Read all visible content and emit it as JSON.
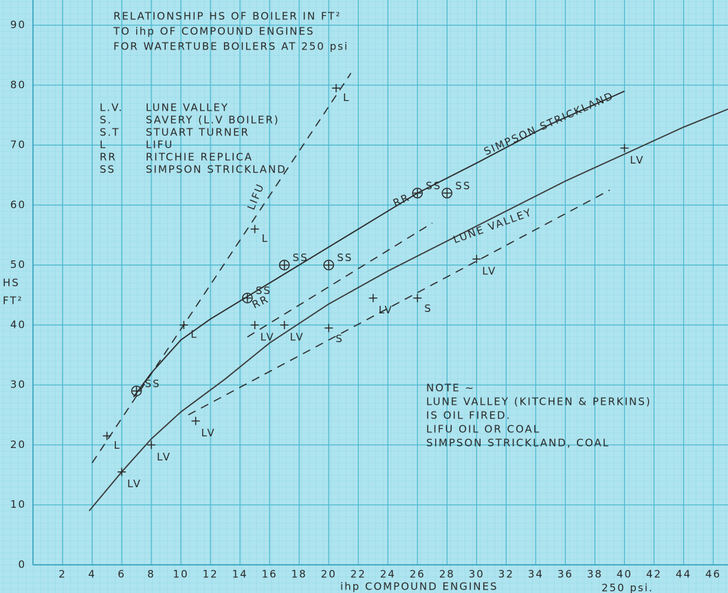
{
  "chart_data": {
    "type": "line",
    "title_lines": [
      "RELATIONSHIP HS OF BOILER IN FT²",
      "TO ihp OF COMPOUND ENGINES",
      "FOR WATERTUBE BOILERS AT 250 psi"
    ],
    "key": [
      [
        "L.V.",
        "LUNE VALLEY"
      ],
      [
        "S.",
        "SAVERY (L.V BOILER)"
      ],
      [
        "S.T",
        "STUART TURNER"
      ],
      [
        "L",
        "LIFU"
      ],
      [
        "RR",
        "RITCHIE REPLICA"
      ],
      [
        "SS",
        "SIMPSON STRICKLAND"
      ]
    ],
    "y_label": [
      "HS",
      "FT²"
    ],
    "x_label": "ihp COMPOUND ENGINES",
    "x_label_note": "250 psi.",
    "note": [
      "NOTE ~",
      "LUNE VALLEY (KITCHEN & PERKINS)",
      "IS OIL FIRED.",
      "LIFU OIL OR COAL",
      "SIMPSON STRICKLAND, COAL"
    ],
    "annotations": [
      "RR",
      "RR"
    ],
    "xlim": [
      0,
      47
    ],
    "ylim": [
      0,
      94.2
    ],
    "xticks": [
      2,
      4,
      6,
      8,
      10,
      12,
      14,
      16,
      18,
      20,
      22,
      24,
      26,
      28,
      30,
      32,
      34,
      36,
      38,
      40,
      42,
      44,
      46
    ],
    "yticks": [
      0,
      10,
      20,
      30,
      40,
      50,
      60,
      70,
      80,
      90
    ],
    "grid": true,
    "series": [
      {
        "name": "SIMPSON STRICKLAND",
        "style": "solid",
        "color": "#2a2a2a",
        "x": [
          6.8,
          8,
          10,
          12,
          15,
          18,
          20,
          23,
          26,
          30,
          35,
          40
        ],
        "y": [
          28,
          32,
          37.5,
          41,
          45.5,
          50,
          53,
          57.5,
          62,
          67,
          73.5,
          79
        ]
      },
      {
        "name": "LUNE VALLEY",
        "style": "solid",
        "color": "#3a3a3a",
        "x": [
          3.8,
          6,
          8,
          10,
          13,
          16,
          20,
          24,
          28,
          32,
          36,
          40,
          44,
          47
        ],
        "y": [
          9,
          15.5,
          21,
          25.5,
          31,
          37,
          43.5,
          49,
          54,
          59,
          64,
          68.5,
          73,
          76
        ]
      },
      {
        "name": "LIFU",
        "style": "dashed",
        "color": "#2a2a2a",
        "x": [
          4,
          21.5
        ],
        "y": [
          17,
          82
        ]
      },
      {
        "style": "dashed",
        "color": "#2a2a2a",
        "x": [
          14.5,
          27
        ],
        "y": [
          38,
          57
        ]
      },
      {
        "style": "dashed",
        "color": "#2a2a2a",
        "x": [
          10.5,
          39
        ],
        "y": [
          25,
          62.5
        ]
      },
      {
        "name": "L",
        "style": "plus",
        "color": "#2a2a2a",
        "x": [
          5,
          10.2,
          15,
          20.5
        ],
        "y": [
          21.5,
          40,
          56,
          79.5
        ]
      },
      {
        "name": "LV",
        "style": "plus",
        "color": "#2a2a2a",
        "x": [
          6,
          8,
          11,
          15,
          17,
          23,
          30,
          40
        ],
        "y": [
          15.5,
          20,
          24,
          40,
          40,
          44.5,
          51,
          69.5
        ]
      },
      {
        "name": "S",
        "style": "plus",
        "color": "#2a2a2a",
        "x": [
          20,
          26
        ],
        "y": [
          39.5,
          44.5
        ]
      },
      {
        "name": "SS",
        "style": "circled",
        "color": "#2a2a2a",
        "x": [
          7,
          14.5,
          17,
          20,
          26,
          28
        ],
        "y": [
          29,
          44.5,
          50,
          50,
          62,
          62
        ]
      }
    ]
  }
}
